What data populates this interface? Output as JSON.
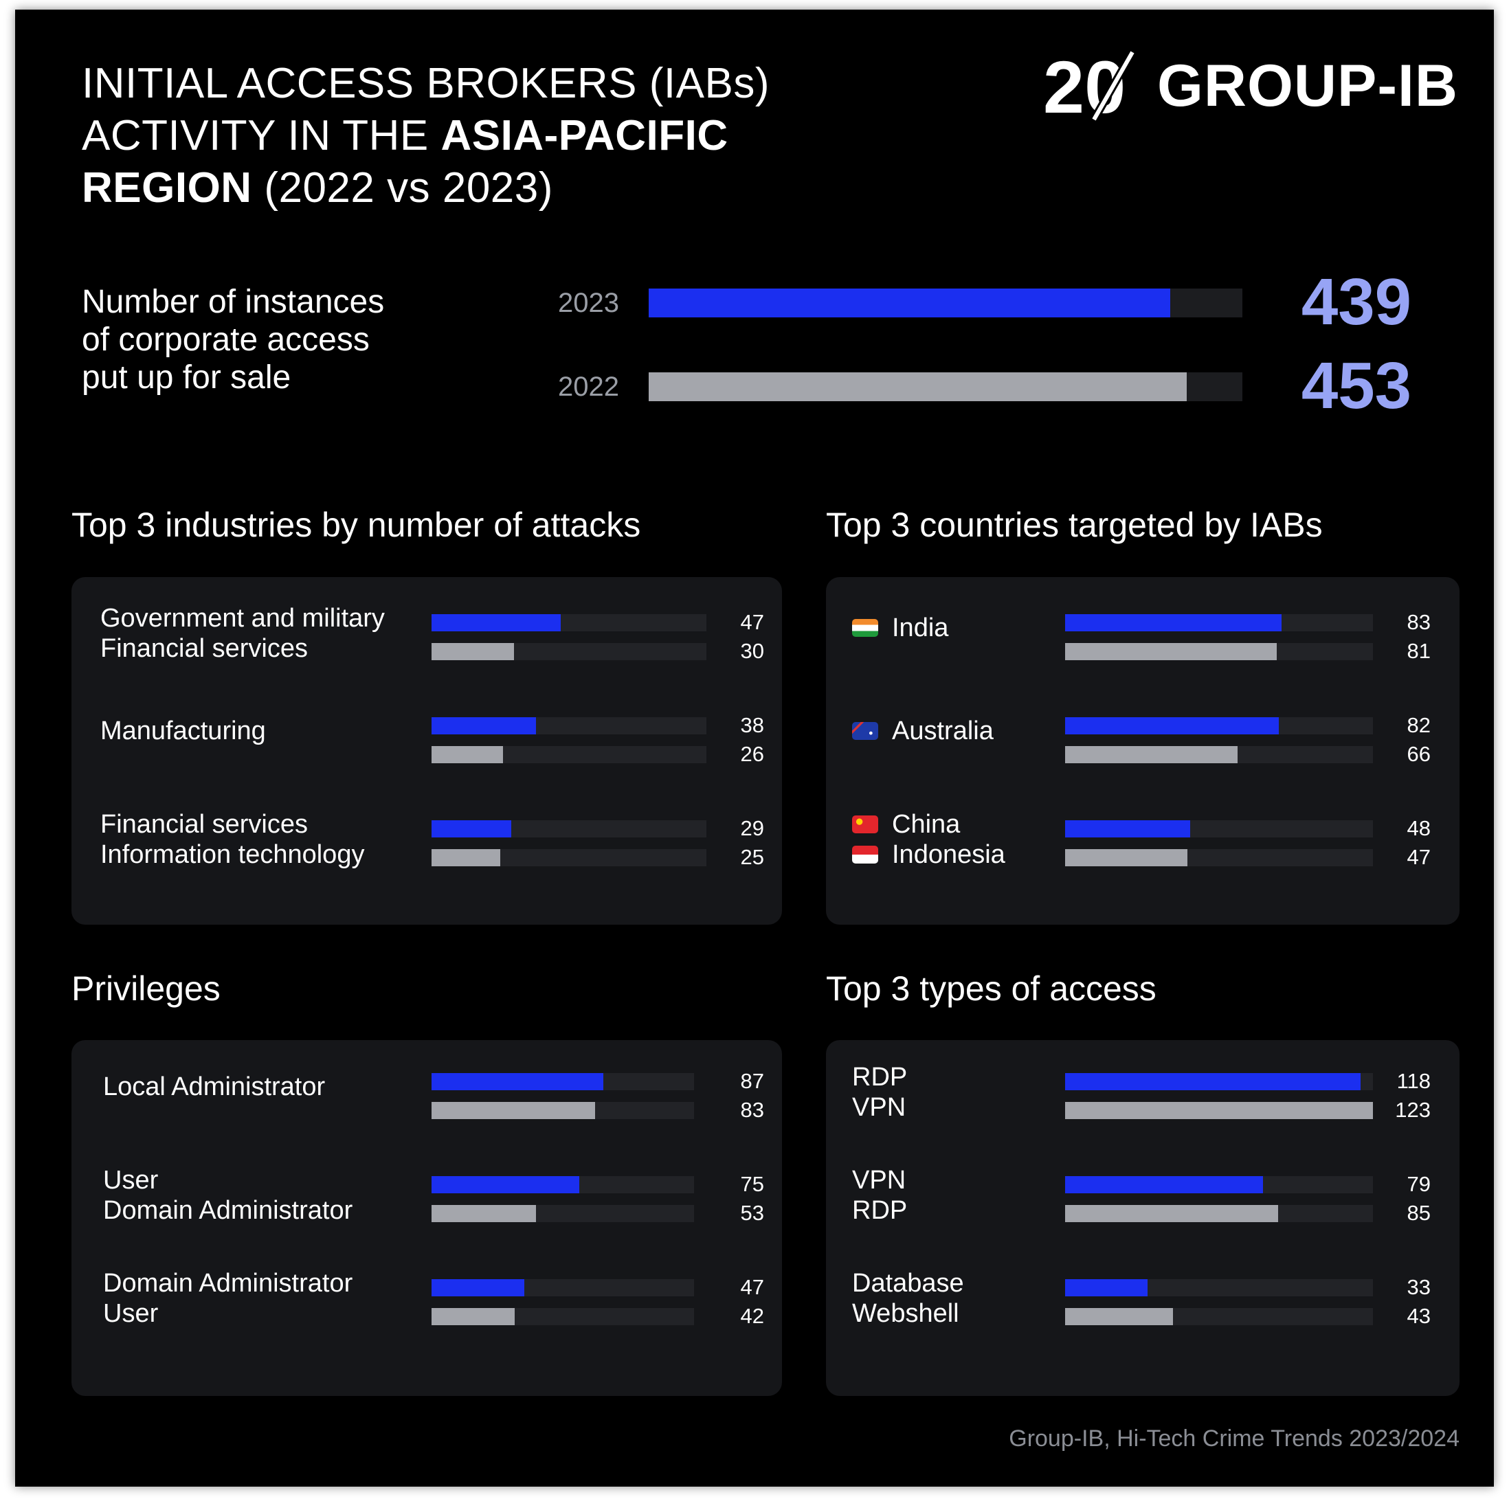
{
  "title_lines": [
    {
      "parts": [
        {
          "text": "INITIAL  ACCESS BROKERS (IABs)",
          "bold": false
        }
      ]
    },
    {
      "parts": [
        {
          "text": "ACTIVITY IN THE ",
          "bold": false
        },
        {
          "text": "ASIA-PACIFIC",
          "bold": true
        }
      ]
    },
    {
      "parts": [
        {
          "text": "REGION",
          "bold": true
        },
        {
          "text": " (2022 vs 2023)",
          "bold": false
        }
      ]
    }
  ],
  "logo": {
    "mark_text": "20",
    "text": "GROUP-IB"
  },
  "colors": {
    "year_2023": "#1b2ff0",
    "year_2022": "#a4a6ac",
    "accent_value": "#97a4f5"
  },
  "chart_data": [
    {
      "type": "bar",
      "label_lines": [
        "Number of instances",
        "of corporate access",
        "put up for sale"
      ],
      "categories": [
        "2023",
        "2022"
      ],
      "values": [
        439,
        453
      ],
      "xlim": [
        0,
        500
      ]
    },
    {
      "type": "bar",
      "title": "Top 3 industries  by number  of attacks",
      "xlim": [
        0,
        100
      ],
      "rows": [
        {
          "labels": [
            "Government and military",
            "Financial services"
          ],
          "values": [
            47,
            30
          ]
        },
        {
          "labels": [
            "Manufacturing"
          ],
          "values": [
            38,
            26
          ]
        },
        {
          "labels": [
            "Financial services",
            "Information technology"
          ],
          "values": [
            29,
            25
          ]
        }
      ]
    },
    {
      "type": "bar",
      "title": "Top 3 countries  targeted by IABs",
      "xlim": [
        0,
        118
      ],
      "rows": [
        {
          "labels": [
            "India"
          ],
          "flags": [
            "india-flag-icon"
          ],
          "values": [
            83,
            81
          ]
        },
        {
          "labels": [
            "Australia"
          ],
          "flags": [
            "australia-flag-icon"
          ],
          "values": [
            82,
            66
          ]
        },
        {
          "labels": [
            "China",
            "Indonesia"
          ],
          "flags": [
            "china-flag-icon",
            "indonesia-flag-icon"
          ],
          "values": [
            48,
            47
          ]
        }
      ]
    },
    {
      "type": "bar",
      "title": "Privileges",
      "xlim": [
        0,
        133
      ],
      "rows": [
        {
          "labels": [
            "Local Administrator"
          ],
          "values": [
            87,
            83
          ]
        },
        {
          "labels": [
            "User",
            "Domain Administrator"
          ],
          "values": [
            75,
            53
          ]
        },
        {
          "labels": [
            "Domain Administrator",
            "User"
          ],
          "values": [
            47,
            42
          ]
        }
      ]
    },
    {
      "type": "bar",
      "title": "Top 3 types of access",
      "xlim": [
        0,
        123
      ],
      "rows": [
        {
          "labels": [
            "RDP",
            "VPN"
          ],
          "values": [
            118,
            123
          ]
        },
        {
          "labels": [
            "VPN",
            "RDP"
          ],
          "values": [
            79,
            85
          ]
        },
        {
          "labels": [
            "Database",
            "Webshell"
          ],
          "values": [
            33,
            43
          ]
        }
      ]
    }
  ],
  "source": "Group-IB, Hi-Tech Crime Trends 2023/2024"
}
